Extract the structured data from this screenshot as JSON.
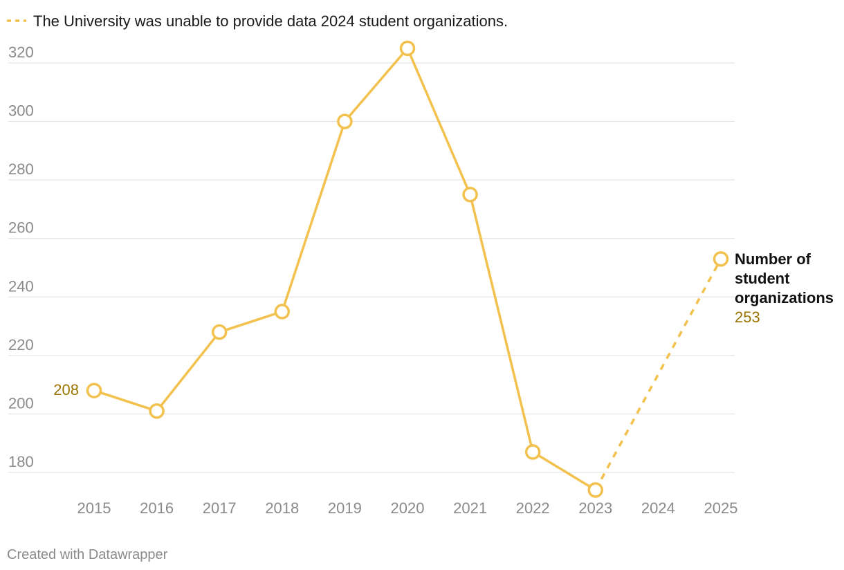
{
  "chart_data": {
    "type": "line",
    "legend_note": "The University was unable to provide data 2024 student organizations.",
    "categories": [
      "2015",
      "2016",
      "2017",
      "2018",
      "2019",
      "2020",
      "2021",
      "2022",
      "2023",
      "2024",
      "2025"
    ],
    "series": [
      {
        "name_lines": [
          "Number of",
          "student",
          "organizations"
        ],
        "values": [
          208,
          201,
          228,
          235,
          300,
          325,
          275,
          187,
          174,
          null,
          253
        ],
        "color": "#f2c14e",
        "gap_between": [
          "2023",
          "2025"
        ],
        "gap_style": "dashed"
      }
    ],
    "y_ticks": [
      180,
      200,
      220,
      240,
      260,
      280,
      300,
      320
    ],
    "ylim": [
      170,
      330
    ],
    "start_label": "208",
    "end_label": "253",
    "footer": "Created with Datawrapper"
  }
}
